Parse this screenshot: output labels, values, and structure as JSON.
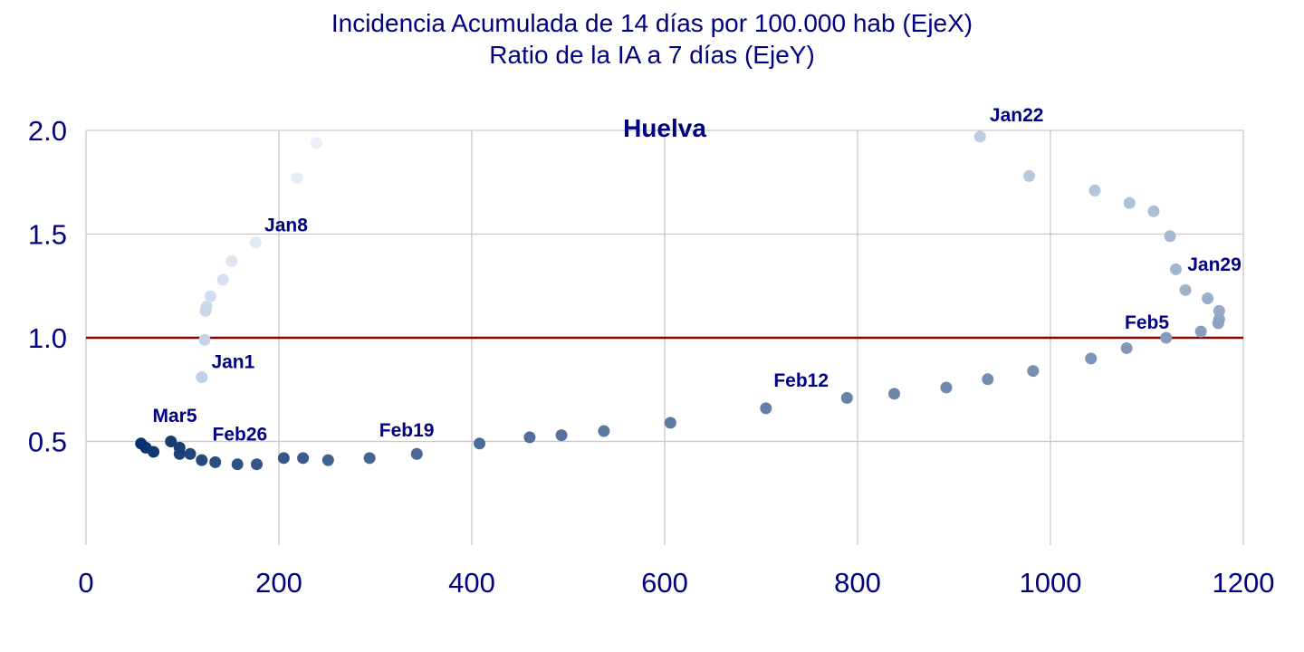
{
  "chart_data": {
    "type": "scatter",
    "title": "Incidencia Acumulada de 14 días por 100.000 hab (EjeX)",
    "subtitle": "Ratio de la IA a 7 días (EjeY)",
    "panel_label": "Huelva",
    "xlim": [
      0,
      1200
    ],
    "ylim": [
      0,
      2.0
    ],
    "x_ticks": [
      "0",
      "200",
      "400",
      "600",
      "800",
      "1000",
      "1200"
    ],
    "y_ticks": [
      "0.5",
      "1.0",
      "1.5",
      "2.0"
    ],
    "grid": true,
    "reference_line": {
      "y": 1.0,
      "color": "#8b0000"
    },
    "color_scale": [
      "#e8f1fb",
      "#08306b"
    ],
    "points": [
      [
        239,
        1.94
      ],
      [
        219,
        1.77
      ],
      [
        176,
        1.46
      ],
      [
        151,
        1.37
      ],
      [
        142,
        1.28
      ],
      [
        129,
        1.2
      ],
      [
        125,
        1.15
      ],
      [
        124,
        1.13
      ],
      [
        123,
        0.99
      ],
      [
        120,
        0.81
      ],
      [
        927,
        1.97
      ],
      [
        978,
        1.78
      ],
      [
        1046,
        1.71
      ],
      [
        1082,
        1.65
      ],
      [
        1107,
        1.61
      ],
      [
        1124,
        1.49
      ],
      [
        1130,
        1.33
      ],
      [
        1140,
        1.23
      ],
      [
        1163,
        1.19
      ],
      [
        1175,
        1.13
      ],
      [
        1175,
        1.09
      ],
      [
        1174,
        1.07
      ],
      [
        1156,
        1.03
      ],
      [
        1120,
        1.0
      ],
      [
        1079,
        0.95
      ],
      [
        1042,
        0.9
      ],
      [
        982,
        0.84
      ],
      [
        935,
        0.8
      ],
      [
        892,
        0.76
      ],
      [
        838,
        0.73
      ],
      [
        789,
        0.71
      ],
      [
        705,
        0.66
      ],
      [
        606,
        0.59
      ],
      [
        537,
        0.55
      ],
      [
        493,
        0.53
      ],
      [
        460,
        0.52
      ],
      [
        408,
        0.49
      ],
      [
        343,
        0.44
      ],
      [
        294,
        0.42
      ],
      [
        251,
        0.41
      ],
      [
        225,
        0.42
      ],
      [
        205,
        0.42
      ],
      [
        177,
        0.39
      ],
      [
        157,
        0.39
      ],
      [
        134,
        0.4
      ],
      [
        120,
        0.41
      ],
      [
        108,
        0.44
      ],
      [
        97,
        0.44
      ],
      [
        97,
        0.47
      ],
      [
        88,
        0.5
      ],
      [
        70,
        0.45
      ],
      [
        62,
        0.47
      ],
      [
        57,
        0.49
      ]
    ],
    "annotations": [
      {
        "text": "Jan1",
        "x": 130,
        "y": 0.81
      },
      {
        "text": "Jan8",
        "x": 185,
        "y": 1.47
      },
      {
        "text": "Jan22",
        "x": 937,
        "y": 2.0
      },
      {
        "text": "Jan29",
        "x": 1142,
        "y": 1.28
      },
      {
        "text": "Feb5",
        "x": 1077,
        "y": 1.0
      },
      {
        "text": "Feb12",
        "x": 713,
        "y": 0.72
      },
      {
        "text": "Feb19",
        "x": 304,
        "y": 0.48
      },
      {
        "text": "Feb26",
        "x": 131,
        "y": 0.46
      },
      {
        "text": "Mar5",
        "x": 69,
        "y": 0.55
      }
    ]
  }
}
